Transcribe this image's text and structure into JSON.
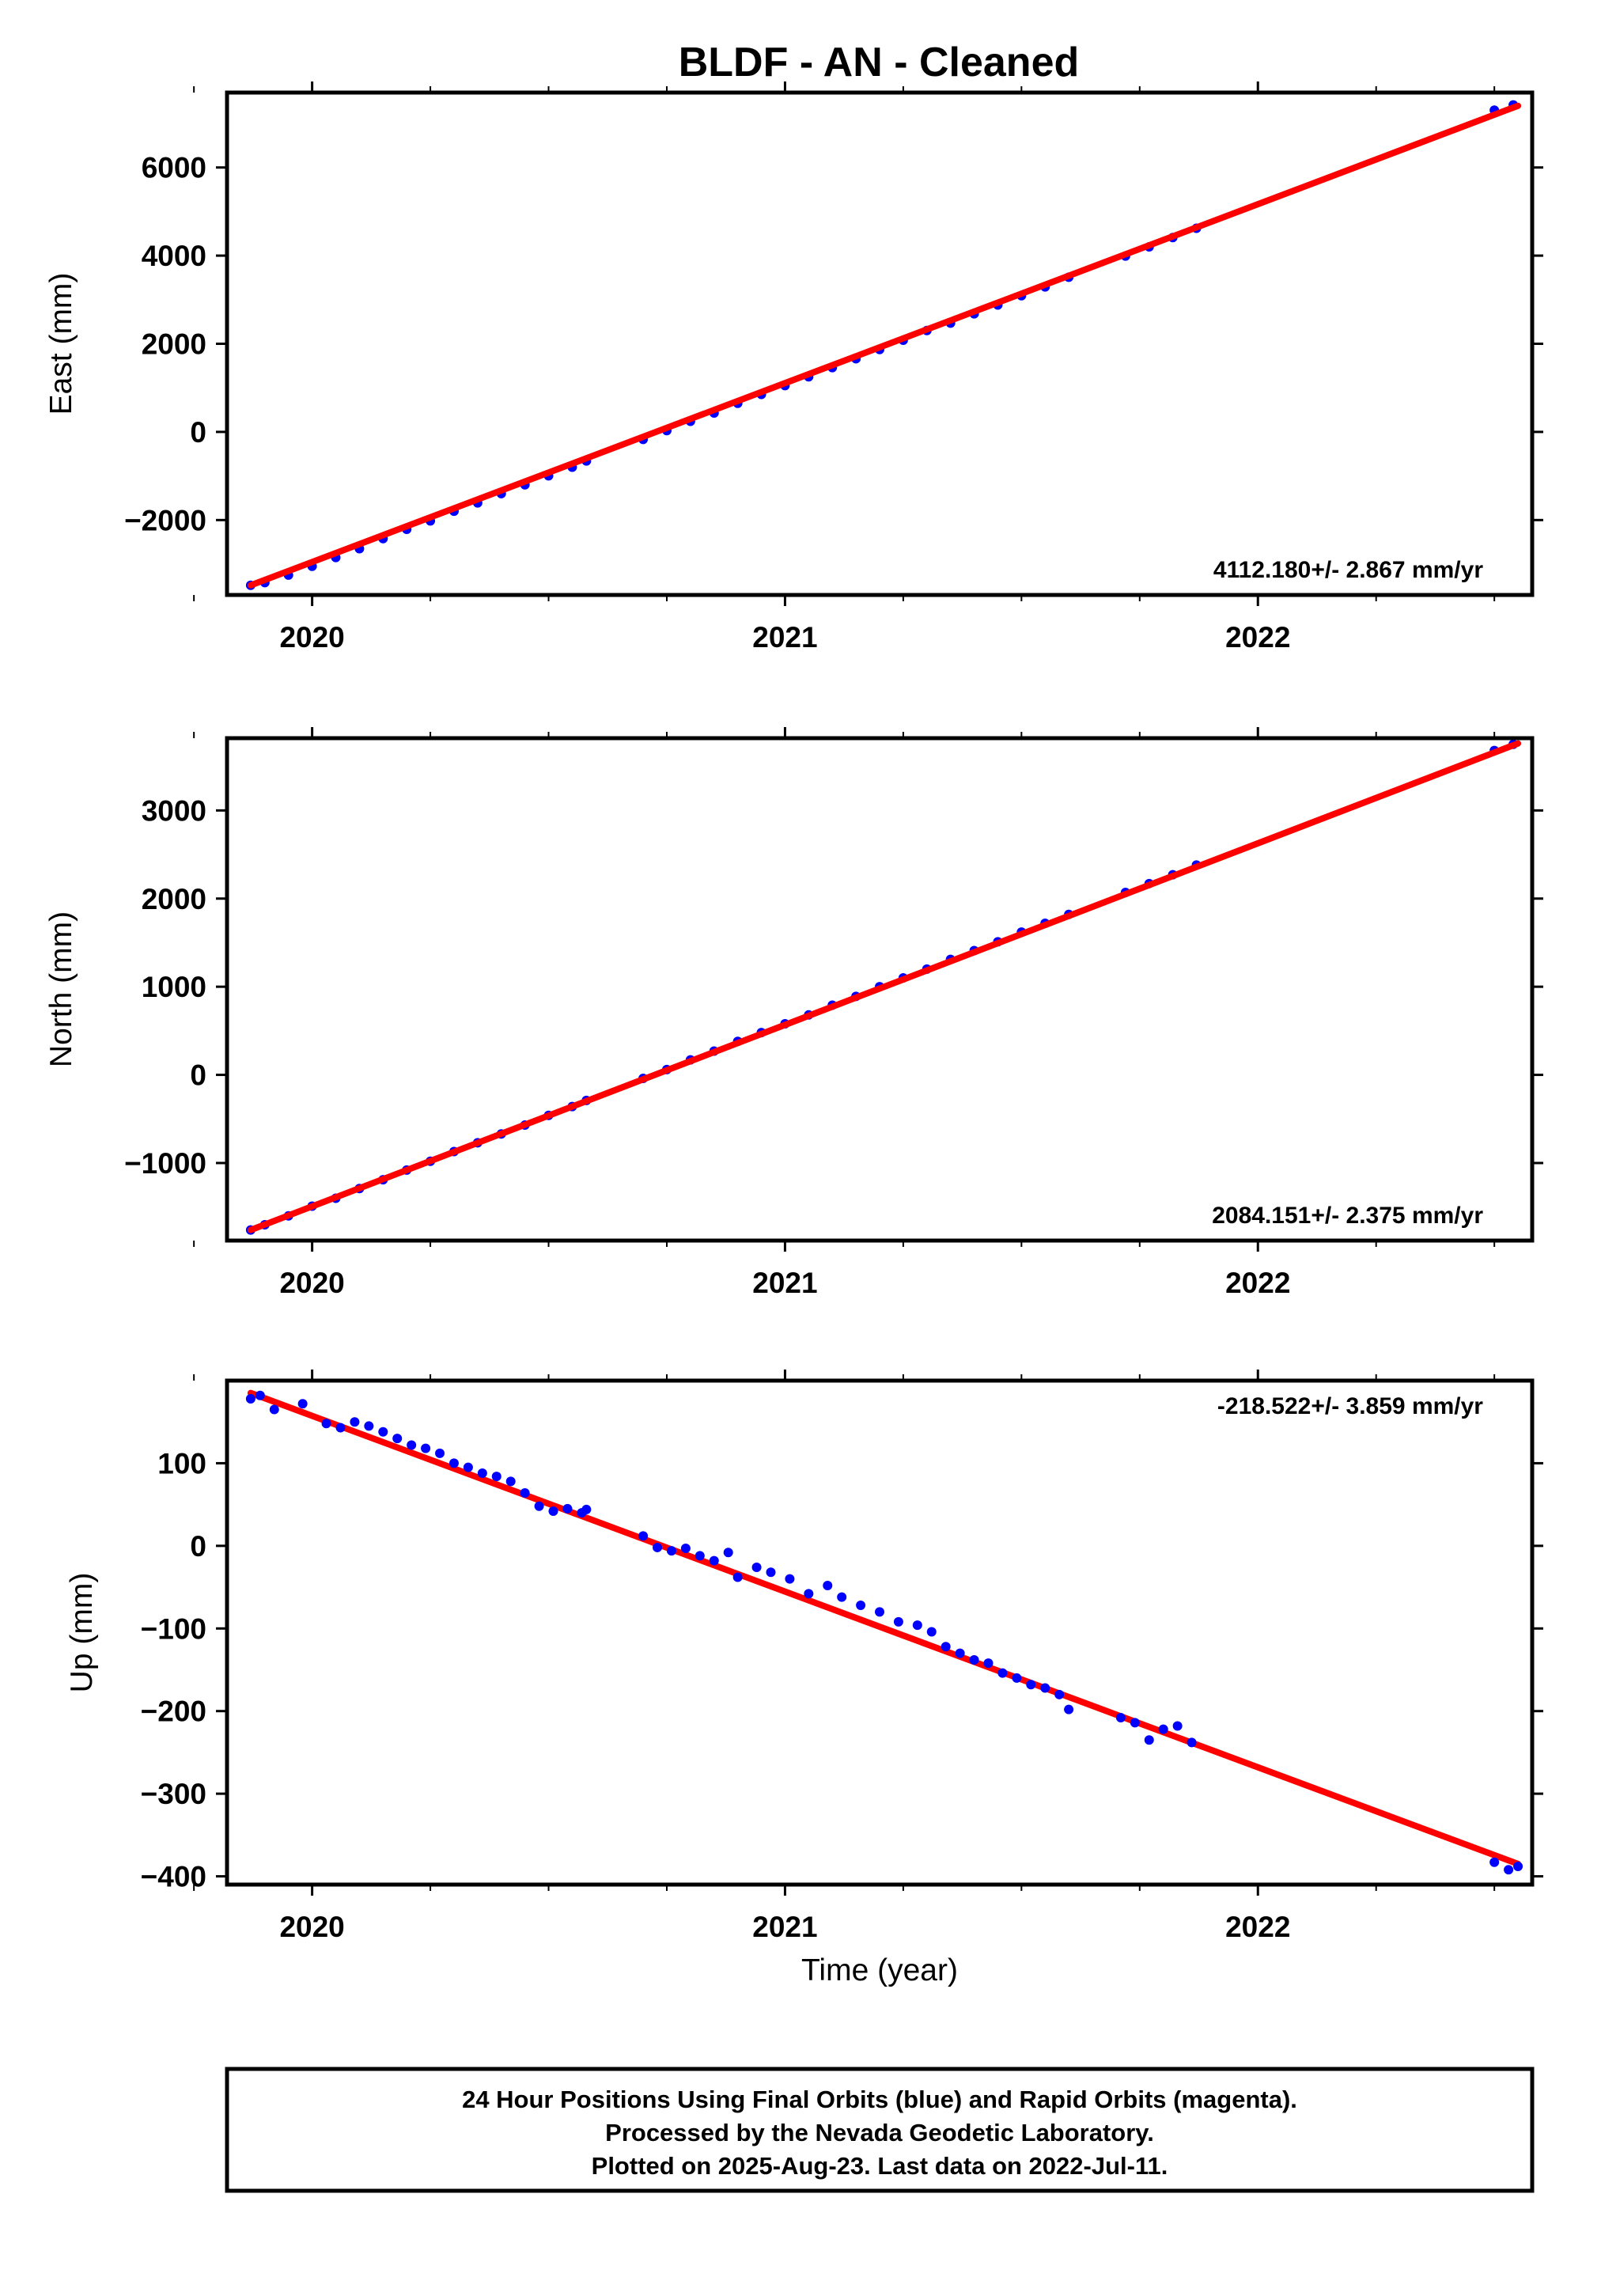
{
  "title": "BLDF  - AN - Cleaned",
  "footer": {
    "lines": [
      "24 Hour Positions Using Final Orbits (blue) and Rapid Orbits (magenta).",
      "Processed by the Nevada Geodetic Laboratory.",
      "Plotted on 2025-Aug-23. Last data on 2022-Jul-11."
    ]
  },
  "colors": {
    "points": "#0000ff",
    "fit_line": "#ff0000",
    "axes": "#000000"
  },
  "chart_data": [
    {
      "type": "scatter",
      "ylabel": "East (mm)",
      "xlim": [
        2019.82,
        2022.58
      ],
      "ylim": [
        -3700,
        7700
      ],
      "xticks": [
        2020,
        2021,
        2022
      ],
      "xtick_labels": [
        "2020",
        "2021",
        "2022"
      ],
      "yticks": [
        -2000,
        0,
        2000,
        4000,
        6000
      ],
      "ytick_labels": [
        "−2000",
        "0",
        "2000",
        "4000",
        "6000"
      ],
      "rate_label": "4112.180+/- 2.867 mm/yr",
      "rate_position": "bottom-right",
      "fit_line": {
        "x": [
          2019.87,
          2022.55
        ],
        "y": [
          -3480,
          7400
        ]
      },
      "series": [
        {
          "x": [
            2019.87,
            2019.9,
            2019.95,
            2020.0,
            2020.05,
            2020.1,
            2020.15,
            2020.2,
            2020.25,
            2020.3,
            2020.35,
            2020.4,
            2020.45,
            2020.5,
            2020.55,
            2020.58,
            2020.7,
            2020.75,
            2020.8,
            2020.85,
            2020.9,
            2020.95,
            2021.0,
            2021.05,
            2021.1,
            2021.15,
            2021.2,
            2021.25,
            2021.3,
            2021.35,
            2021.4,
            2021.45,
            2021.5,
            2021.55,
            2021.6,
            2021.72,
            2021.77,
            2021.82,
            2021.87,
            2022.5,
            2022.54
          ],
          "y": [
            -3480,
            -3420,
            -3250,
            -3050,
            -2850,
            -2650,
            -2420,
            -2210,
            -2020,
            -1800,
            -1610,
            -1400,
            -1200,
            -995,
            -800,
            -660,
            -170,
            30,
            240,
            430,
            650,
            850,
            1050,
            1250,
            1460,
            1660,
            1870,
            2080,
            2300,
            2470,
            2680,
            2880,
            3090,
            3290,
            3510,
            3990,
            4200,
            4410,
            4620,
            7300,
            7420
          ]
        }
      ]
    },
    {
      "type": "scatter",
      "ylabel": "North (mm)",
      "xlim": [
        2019.82,
        2022.58
      ],
      "ylim": [
        -1880,
        3820
      ],
      "xticks": [
        2020,
        2021,
        2022
      ],
      "xtick_labels": [
        "2020",
        "2021",
        "2022"
      ],
      "yticks": [
        -1000,
        0,
        1000,
        2000,
        3000
      ],
      "ytick_labels": [
        "−1000",
        "0",
        "1000",
        "2000",
        "3000"
      ],
      "rate_label": "2084.151+/- 2.375 mm/yr",
      "rate_position": "bottom-right",
      "fit_line": {
        "x": [
          2019.87,
          2022.55
        ],
        "y": [
          -1760,
          3760
        ]
      },
      "series": [
        {
          "x": [
            2019.87,
            2019.9,
            2019.95,
            2020.0,
            2020.05,
            2020.1,
            2020.15,
            2020.2,
            2020.25,
            2020.3,
            2020.35,
            2020.4,
            2020.45,
            2020.5,
            2020.55,
            2020.58,
            2020.7,
            2020.75,
            2020.8,
            2020.85,
            2020.9,
            2020.95,
            2021.0,
            2021.05,
            2021.1,
            2021.15,
            2021.2,
            2021.25,
            2021.3,
            2021.35,
            2021.4,
            2021.45,
            2021.5,
            2021.55,
            2021.6,
            2021.72,
            2021.77,
            2021.82,
            2021.87,
            2022.5,
            2022.54
          ],
          "y": [
            -1760,
            -1700,
            -1600,
            -1490,
            -1400,
            -1290,
            -1190,
            -1080,
            -980,
            -870,
            -770,
            -670,
            -570,
            -460,
            -360,
            -290,
            -40,
            60,
            170,
            270,
            380,
            480,
            580,
            680,
            790,
            890,
            1000,
            1100,
            1200,
            1310,
            1410,
            1510,
            1620,
            1720,
            1820,
            2070,
            2170,
            2270,
            2380,
            3680,
            3750
          ]
        }
      ]
    },
    {
      "type": "scatter",
      "ylabel": "Up (mm)",
      "xlabel": "Time (year)",
      "xlim": [
        2019.82,
        2022.58
      ],
      "ylim": [
        -410,
        200
      ],
      "xticks": [
        2020,
        2021,
        2022
      ],
      "xtick_labels": [
        "2020",
        "2021",
        "2022"
      ],
      "yticks": [
        -400,
        -300,
        -200,
        -100,
        0,
        100
      ],
      "ytick_labels": [
        "−400",
        "−300",
        "−200",
        "−100",
        "0",
        "100"
      ],
      "rate_label": "-218.522+/- 3.859 mm/yr",
      "rate_position": "top-right",
      "fit_line": {
        "x": [
          2019.87,
          2022.55
        ],
        "y": [
          185,
          -385
        ]
      },
      "series": [
        {
          "x": [
            2019.87,
            2019.89,
            2019.92,
            2019.98,
            2020.03,
            2020.06,
            2020.09,
            2020.12,
            2020.15,
            2020.18,
            2020.21,
            2020.24,
            2020.27,
            2020.3,
            2020.33,
            2020.36,
            2020.39,
            2020.42,
            2020.45,
            2020.48,
            2020.51,
            2020.54,
            2020.57,
            2020.58,
            2020.7,
            2020.73,
            2020.76,
            2020.79,
            2020.82,
            2020.85,
            2020.88,
            2020.9,
            2020.94,
            2020.97,
            2021.01,
            2021.05,
            2021.09,
            2021.12,
            2021.16,
            2021.2,
            2021.24,
            2021.28,
            2021.31,
            2021.34,
            2021.37,
            2021.4,
            2021.43,
            2021.46,
            2021.49,
            2021.52,
            2021.55,
            2021.58,
            2021.6,
            2021.71,
            2021.74,
            2021.77,
            2021.8,
            2021.83,
            2021.86,
            2022.5,
            2022.53,
            2022.55
          ],
          "y": [
            178,
            182,
            165,
            172,
            148,
            143,
            150,
            145,
            138,
            130,
            122,
            118,
            112,
            100,
            95,
            88,
            84,
            78,
            64,
            48,
            42,
            45,
            40,
            44,
            12,
            -2,
            -6,
            -3,
            -12,
            -18,
            -8,
            -38,
            -26,
            -32,
            -40,
            -58,
            -48,
            -62,
            -72,
            -80,
            -92,
            -96,
            -104,
            -122,
            -130,
            -138,
            -142,
            -154,
            -160,
            -168,
            -172,
            -180,
            -198,
            -208,
            -214,
            -235,
            -222,
            -218,
            -238,
            -383,
            -392,
            -388
          ]
        }
      ]
    }
  ]
}
